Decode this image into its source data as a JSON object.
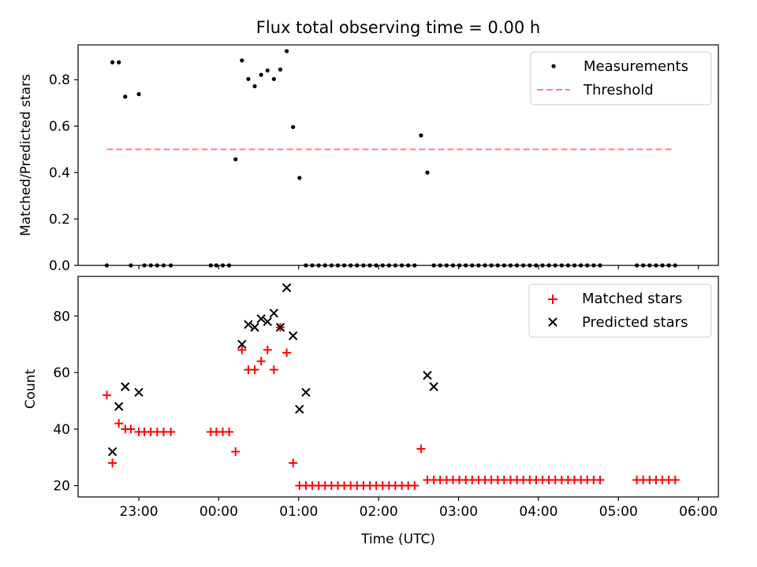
{
  "chart_data": [
    {
      "type": "scatter",
      "title": "Flux total observing time = 0.00 h",
      "xlabel": "",
      "ylabel": "Matched/Predicted stars",
      "xlim": [
        -1.76,
        6.25
      ],
      "ylim": [
        0.0,
        0.95
      ],
      "x_ticks": [
        -1,
        0,
        1,
        2,
        3,
        4,
        5,
        6
      ],
      "y_ticks": [
        0.0,
        0.2,
        0.4,
        0.6,
        0.8
      ],
      "y_tick_labels": [
        "0.0",
        "0.2",
        "0.4",
        "0.6",
        "0.8"
      ],
      "legend": {
        "position": "top-right",
        "entries": [
          {
            "label": "Measurements",
            "marker": "dot",
            "color": "#000000"
          },
          {
            "label": "Threshold",
            "marker": "dashed-line",
            "color": "#ff7f7f"
          }
        ]
      },
      "threshold": {
        "value": 0.5,
        "x_range": [
          -1.4,
          5.7
        ]
      },
      "series": [
        {
          "name": "Measurements",
          "x": [
            -1.4,
            -1.33,
            -1.25,
            -1.17,
            -1.1,
            -1.0,
            -0.93,
            -0.85,
            -0.77,
            -0.69,
            -0.6,
            -0.1,
            -0.03,
            0.05,
            0.13,
            0.21,
            0.29,
            0.37,
            0.45,
            0.53,
            0.61,
            0.69,
            0.77,
            0.85,
            0.93,
            1.01,
            1.09,
            1.17,
            1.25,
            1.33,
            1.41,
            1.49,
            1.57,
            1.65,
            1.73,
            1.81,
            1.89,
            1.97,
            2.05,
            2.13,
            2.21,
            2.29,
            2.37,
            2.45,
            2.53,
            2.61,
            2.69,
            2.77,
            2.85,
            2.93,
            3.01,
            3.09,
            3.17,
            3.25,
            3.33,
            3.41,
            3.49,
            3.57,
            3.65,
            3.73,
            3.81,
            3.89,
            3.97,
            4.05,
            4.13,
            4.21,
            4.29,
            4.37,
            4.45,
            4.53,
            4.61,
            4.69,
            4.77,
            5.23,
            5.31,
            5.39,
            5.47,
            5.55,
            5.63,
            5.71
          ],
          "y": [
            0.0,
            0.875,
            0.875,
            0.727,
            0.0,
            0.738,
            0.0,
            0.0,
            0.0,
            0.0,
            0.0,
            0.0,
            0.0,
            0.0,
            0.0,
            0.457,
            0.883,
            0.803,
            0.772,
            0.821,
            0.84,
            0.803,
            0.844,
            0.923,
            0.596,
            0.377,
            0.0,
            0.0,
            0.0,
            0.0,
            0.0,
            0.0,
            0.0,
            0.0,
            0.0,
            0.0,
            0.0,
            0.0,
            0.0,
            0.0,
            0.0,
            0.0,
            0.0,
            0.0,
            0.56,
            0.4,
            0.0,
            0.0,
            0.0,
            0.0,
            0.0,
            0.0,
            0.0,
            0.0,
            0.0,
            0.0,
            0.0,
            0.0,
            0.0,
            0.0,
            0.0,
            0.0,
            0.0,
            0.0,
            0.0,
            0.0,
            0.0,
            0.0,
            0.0,
            0.0,
            0.0,
            0.0,
            0.0,
            0.0,
            0.0,
            0.0,
            0.0,
            0.0,
            0.0,
            0.0
          ]
        }
      ]
    },
    {
      "type": "scatter",
      "title": "",
      "xlabel": "Time (UTC)",
      "ylabel": "Count",
      "xlim": [
        -1.76,
        6.25
      ],
      "ylim": [
        16.0,
        94.0
      ],
      "x_ticks": [
        -1,
        0,
        1,
        2,
        3,
        4,
        5,
        6
      ],
      "x_tick_labels": [
        "23:00",
        "00:00",
        "01:00",
        "02:00",
        "03:00",
        "04:00",
        "05:00",
        "06:00"
      ],
      "y_ticks": [
        20,
        40,
        60,
        80
      ],
      "y_tick_labels": [
        "20",
        "40",
        "60",
        "80"
      ],
      "legend": {
        "position": "top-right",
        "entries": [
          {
            "label": "Matched stars",
            "marker": "plus",
            "color": "#ff0000"
          },
          {
            "label": "Predicted stars",
            "marker": "x",
            "color": "#000000"
          }
        ]
      },
      "series": [
        {
          "name": "Matched stars",
          "x": [
            -1.4,
            -1.33,
            -1.25,
            -1.17,
            -1.1,
            -1.0,
            -0.93,
            -0.85,
            -0.77,
            -0.69,
            -0.6,
            -0.1,
            -0.03,
            0.05,
            0.13,
            0.21,
            0.29,
            0.37,
            0.45,
            0.53,
            0.61,
            0.69,
            0.77,
            0.85,
            0.93,
            1.01,
            1.09,
            1.17,
            1.25,
            1.33,
            1.41,
            1.49,
            1.57,
            1.65,
            1.73,
            1.81,
            1.89,
            1.97,
            2.05,
            2.13,
            2.21,
            2.29,
            2.37,
            2.45,
            2.53,
            2.61,
            2.69,
            2.77,
            2.85,
            2.93,
            3.01,
            3.09,
            3.17,
            3.25,
            3.33,
            3.41,
            3.49,
            3.57,
            3.65,
            3.73,
            3.81,
            3.89,
            3.97,
            4.05,
            4.13,
            4.21,
            4.29,
            4.37,
            4.45,
            4.53,
            4.61,
            4.69,
            4.77,
            5.23,
            5.31,
            5.39,
            5.47,
            5.55,
            5.63,
            5.71
          ],
          "y": [
            52,
            28,
            42,
            40,
            40,
            39,
            39,
            39,
            39,
            39,
            39,
            39,
            39,
            39,
            39,
            32,
            68,
            61,
            61,
            64,
            68,
            61,
            76,
            67,
            28,
            20,
            20,
            20,
            20,
            20,
            20,
            20,
            20,
            20,
            20,
            20,
            20,
            20,
            20,
            20,
            20,
            20,
            20,
            20,
            33,
            22,
            22,
            22,
            22,
            22,
            22,
            22,
            22,
            22,
            22,
            22,
            22,
            22,
            22,
            22,
            22,
            22,
            22,
            22,
            22,
            22,
            22,
            22,
            22,
            22,
            22,
            22,
            22,
            22,
            22,
            22,
            22,
            22,
            22,
            22
          ]
        },
        {
          "name": "Predicted stars",
          "x": [
            -1.33,
            -1.25,
            -1.17,
            -1.0,
            0.29,
            0.37,
            0.45,
            0.53,
            0.61,
            0.69,
            0.77,
            0.85,
            0.93,
            1.01,
            1.09,
            2.61,
            2.69
          ],
          "y": [
            32,
            48,
            55,
            53,
            70,
            77,
            76,
            79,
            78,
            81,
            76,
            90,
            73,
            47,
            53,
            59,
            55
          ]
        }
      ]
    }
  ]
}
